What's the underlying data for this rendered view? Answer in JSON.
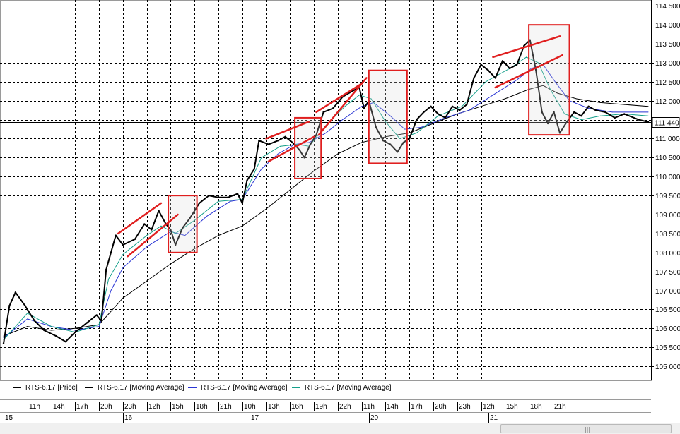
{
  "chart_data": {
    "type": "line",
    "instrument": "RTS-6.17",
    "y_ticks": [
      105000,
      105500,
      106000,
      106500,
      107000,
      107500,
      108000,
      108500,
      109000,
      109500,
      110000,
      110500,
      111000,
      111500,
      112000,
      112500,
      113000,
      113500,
      114000,
      114500
    ],
    "ylim": [
      104630,
      114580
    ],
    "last_price": 111440,
    "last_price_label": "111 440",
    "grid": true,
    "legend_placement": "bottom",
    "x_range": [
      0,
      27
    ],
    "day_labels": [
      {
        "x": 0,
        "label": "15"
      },
      {
        "x": 5,
        "label": "16"
      },
      {
        "x": 10.3,
        "label": "17"
      },
      {
        "x": 15.3,
        "label": "20"
      },
      {
        "x": 20.3,
        "label": "21"
      }
    ],
    "hour_labels": [
      {
        "x": 1,
        "label": "11h"
      },
      {
        "x": 2,
        "label": "14h"
      },
      {
        "x": 3,
        "label": "17h"
      },
      {
        "x": 4,
        "label": "20h"
      },
      {
        "x": 5,
        "label": "23h"
      },
      {
        "x": 6,
        "label": "12h"
      },
      {
        "x": 7,
        "label": "15h"
      },
      {
        "x": 8,
        "label": "18h"
      },
      {
        "x": 9,
        "label": "21h"
      },
      {
        "x": 10,
        "label": "10h"
      },
      {
        "x": 11,
        "label": "13h"
      },
      {
        "x": 12,
        "label": "16h"
      },
      {
        "x": 13,
        "label": "19h"
      },
      {
        "x": 14,
        "label": "22h"
      },
      {
        "x": 15,
        "label": "11h"
      },
      {
        "x": 16,
        "label": "14h"
      },
      {
        "x": 17,
        "label": "17h"
      },
      {
        "x": 18,
        "label": "20h"
      },
      {
        "x": 19,
        "label": "23h"
      },
      {
        "x": 20,
        "label": "12h"
      },
      {
        "x": 21,
        "label": "15h"
      },
      {
        "x": 22,
        "label": "18h"
      },
      {
        "x": 23,
        "label": "21h"
      }
    ],
    "series": [
      {
        "name": "RTS-6.17 [Price]",
        "color": "#000000",
        "points": [
          [
            0,
            105600
          ],
          [
            0.25,
            106600
          ],
          [
            0.5,
            106950
          ],
          [
            0.9,
            106600
          ],
          [
            1.3,
            106200
          ],
          [
            1.7,
            105950
          ],
          [
            2.2,
            105800
          ],
          [
            2.6,
            105650
          ],
          [
            3.0,
            105900
          ],
          [
            3.5,
            106150
          ],
          [
            3.9,
            106350
          ],
          [
            4.1,
            106200
          ],
          [
            4.3,
            107550
          ],
          [
            4.5,
            108000
          ],
          [
            4.7,
            108450
          ],
          [
            5.0,
            108200
          ],
          [
            5.5,
            108350
          ],
          [
            5.9,
            108750
          ],
          [
            6.2,
            108600
          ],
          [
            6.5,
            109100
          ],
          [
            6.8,
            108750
          ],
          [
            7.0,
            108600
          ],
          [
            7.2,
            108200
          ],
          [
            7.5,
            108650
          ],
          [
            7.8,
            108900
          ],
          [
            8.2,
            109300
          ],
          [
            8.6,
            109500
          ],
          [
            9.0,
            109450
          ],
          [
            9.4,
            109450
          ],
          [
            9.8,
            109550
          ],
          [
            10.0,
            109300
          ],
          [
            10.2,
            109900
          ],
          [
            10.5,
            110200
          ],
          [
            10.7,
            110950
          ],
          [
            11.1,
            110850
          ],
          [
            11.5,
            110950
          ],
          [
            11.8,
            111050
          ],
          [
            12.1,
            110900
          ],
          [
            12.4,
            110700
          ],
          [
            12.6,
            110500
          ],
          [
            12.85,
            110850
          ],
          [
            13.1,
            111100
          ],
          [
            13.4,
            111700
          ],
          [
            13.8,
            111800
          ],
          [
            14.2,
            112100
          ],
          [
            14.6,
            112250
          ],
          [
            14.9,
            112350
          ],
          [
            15.1,
            111800
          ],
          [
            15.3,
            112000
          ],
          [
            15.6,
            111300
          ],
          [
            15.9,
            110950
          ],
          [
            16.2,
            110850
          ],
          [
            16.5,
            110650
          ],
          [
            16.75,
            110900
          ],
          [
            17.0,
            111000
          ],
          [
            17.3,
            111500
          ],
          [
            17.6,
            111700
          ],
          [
            17.9,
            111850
          ],
          [
            18.2,
            111650
          ],
          [
            18.5,
            111550
          ],
          [
            18.8,
            111850
          ],
          [
            19.1,
            111750
          ],
          [
            19.4,
            111900
          ],
          [
            19.7,
            112600
          ],
          [
            20.0,
            112950
          ],
          [
            20.3,
            112800
          ],
          [
            20.6,
            112600
          ],
          [
            20.9,
            113050
          ],
          [
            21.2,
            112850
          ],
          [
            21.5,
            112950
          ],
          [
            21.8,
            113450
          ],
          [
            22.05,
            113600
          ],
          [
            22.3,
            112800
          ],
          [
            22.55,
            111700
          ],
          [
            22.8,
            111400
          ],
          [
            23.05,
            111700
          ],
          [
            23.3,
            111150
          ],
          [
            23.6,
            111450
          ],
          [
            23.9,
            111700
          ],
          [
            24.2,
            111600
          ],
          [
            24.5,
            111850
          ],
          [
            24.8,
            111750
          ],
          [
            25.2,
            111700
          ],
          [
            25.6,
            111550
          ],
          [
            26.0,
            111650
          ],
          [
            26.6,
            111500
          ],
          [
            27.0,
            111440
          ]
        ]
      },
      {
        "name": "RTS-6.17 [Moving Average]",
        "color": "#000000",
        "points": [
          [
            0,
            105800
          ],
          [
            1,
            106050
          ],
          [
            2,
            105950
          ],
          [
            3,
            106000
          ],
          [
            4,
            106100
          ],
          [
            5,
            106800
          ],
          [
            6,
            107250
          ],
          [
            7,
            107700
          ],
          [
            8,
            108100
          ],
          [
            9,
            108450
          ],
          [
            10,
            108700
          ],
          [
            11,
            109150
          ],
          [
            12,
            109650
          ],
          [
            13,
            110150
          ],
          [
            14,
            110600
          ],
          [
            15,
            110900
          ],
          [
            16,
            111050
          ],
          [
            17,
            111150
          ],
          [
            18,
            111400
          ],
          [
            19,
            111650
          ],
          [
            20,
            111850
          ],
          [
            21,
            112050
          ],
          [
            22,
            112300
          ],
          [
            22.6,
            112400
          ],
          [
            23.2,
            112200
          ],
          [
            24,
            112050
          ],
          [
            25,
            111950
          ],
          [
            26,
            111900
          ],
          [
            27,
            111850
          ]
        ]
      },
      {
        "name": "RTS-6.17 [Moving Average]",
        "color": "#2a35d4",
        "points": [
          [
            0,
            105750
          ],
          [
            1,
            106250
          ],
          [
            2,
            106050
          ],
          [
            3,
            105950
          ],
          [
            4,
            106050
          ],
          [
            4.5,
            107000
          ],
          [
            5,
            107600
          ],
          [
            6,
            108150
          ],
          [
            7,
            108550
          ],
          [
            7.6,
            108450
          ],
          [
            8.5,
            108950
          ],
          [
            9.5,
            109350
          ],
          [
            10,
            109400
          ],
          [
            10.8,
            110200
          ],
          [
            11.5,
            110600
          ],
          [
            12.2,
            110850
          ],
          [
            12.8,
            110900
          ],
          [
            13.5,
            111150
          ],
          [
            14.2,
            111500
          ],
          [
            15,
            111850
          ],
          [
            15.5,
            111950
          ],
          [
            16.2,
            111600
          ],
          [
            16.8,
            111250
          ],
          [
            17.5,
            111300
          ],
          [
            18.5,
            111550
          ],
          [
            19.5,
            111750
          ],
          [
            20.5,
            112150
          ],
          [
            21.5,
            112550
          ],
          [
            22.1,
            112850
          ],
          [
            22.6,
            112950
          ],
          [
            23.1,
            112500
          ],
          [
            23.7,
            112000
          ],
          [
            24.5,
            111800
          ],
          [
            25.5,
            111700
          ],
          [
            27,
            111700
          ]
        ]
      },
      {
        "name": "RTS-6.17 [Moving Average]",
        "color": "#149f8a",
        "points": [
          [
            0,
            105700
          ],
          [
            1,
            106400
          ],
          [
            2,
            106050
          ],
          [
            3,
            105900
          ],
          [
            4,
            106100
          ],
          [
            4.4,
            107300
          ],
          [
            5,
            107950
          ],
          [
            6,
            108450
          ],
          [
            6.6,
            108700
          ],
          [
            7.2,
            108500
          ],
          [
            8,
            108850
          ],
          [
            9,
            109350
          ],
          [
            10,
            109400
          ],
          [
            10.8,
            110500
          ],
          [
            11.6,
            110800
          ],
          [
            12.3,
            110850
          ],
          [
            12.8,
            110800
          ],
          [
            13.5,
            111350
          ],
          [
            14.3,
            111850
          ],
          [
            14.9,
            112150
          ],
          [
            15.4,
            112050
          ],
          [
            16,
            111450
          ],
          [
            16.6,
            111000
          ],
          [
            17.3,
            111150
          ],
          [
            18.2,
            111600
          ],
          [
            19.2,
            111850
          ],
          [
            20.2,
            112500
          ],
          [
            21.2,
            112850
          ],
          [
            21.9,
            113150
          ],
          [
            22.4,
            113000
          ],
          [
            22.9,
            112300
          ],
          [
            23.5,
            111650
          ],
          [
            24.2,
            111500
          ],
          [
            25,
            111600
          ],
          [
            26,
            111650
          ],
          [
            27,
            111600
          ]
        ]
      }
    ]
  },
  "legend": [
    {
      "label": "RTS-6.17 [Price]",
      "color": "#000000",
      "thick": true
    },
    {
      "label": "RTS-6.17 [Moving Average]",
      "color": "#000000",
      "thick": false
    },
    {
      "label": "RTS-6.17 [Moving Average]",
      "color": "#2a35d4",
      "thick": false
    },
    {
      "label": "RTS-6.17 [Moving Average]",
      "color": "#149f8a",
      "thick": false
    }
  ],
  "annotations": {
    "color": "#e01f1f",
    "boxes": [
      {
        "x": [
          6.9,
          8.1
        ],
        "y": [
          108000,
          109500
        ]
      },
      {
        "x": [
          12.2,
          13.3
        ],
        "y": [
          109950,
          111550
        ]
      },
      {
        "x": [
          15.3,
          16.9
        ],
        "y": [
          110350,
          112800
        ]
      },
      {
        "x": [
          22.0,
          23.7
        ],
        "y": [
          111100,
          114000
        ]
      }
    ],
    "channel_lines": [
      {
        "x1": 4.8,
        "y1": 108500,
        "x2": 6.6,
        "y2": 109300
      },
      {
        "x1": 5.2,
        "y1": 107900,
        "x2": 7.3,
        "y2": 109000
      },
      {
        "x1": 11.0,
        "y1": 111000,
        "x2": 12.8,
        "y2": 111450
      },
      {
        "x1": 11.1,
        "y1": 110400,
        "x2": 13.0,
        "y2": 111050
      },
      {
        "x1": 13.1,
        "y1": 111700,
        "x2": 15.0,
        "y2": 112450
      },
      {
        "x1": 13.2,
        "y1": 111100,
        "x2": 15.2,
        "y2": 112600
      },
      {
        "x1": 20.5,
        "y1": 113150,
        "x2": 23.3,
        "y2": 113700
      },
      {
        "x1": 20.6,
        "y1": 112350,
        "x2": 23.4,
        "y2": 113200
      }
    ]
  }
}
